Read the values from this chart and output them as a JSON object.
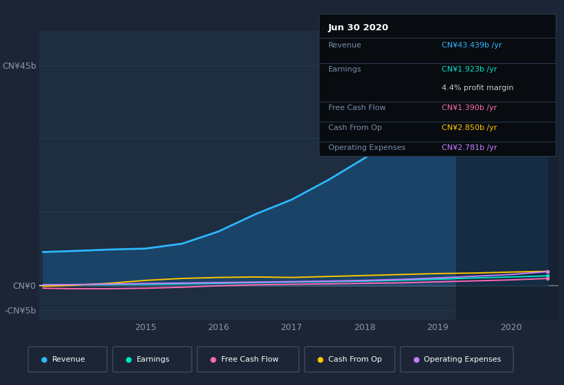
{
  "bg_color": "#1c2535",
  "plot_bg_color": "#1c2535",
  "chart_bg_color": "#1e2d40",
  "grid_color": "#2a3d52",
  "tooltip": {
    "title": "Jun 30 2020",
    "rows": [
      {
        "label": "Revenue",
        "value": "CN¥43.439b /yr",
        "value_color": "#2db8ff",
        "label_color": "#7a8fa8"
      },
      {
        "label": "Earnings",
        "value": "CN¥1.923b /yr",
        "value_color": "#00e5c8",
        "label_color": "#7a8fa8"
      },
      {
        "label": "",
        "value": "4.4% profit margin",
        "value_color": "#cccccc",
        "label_color": "#7a8fa8"
      },
      {
        "label": "Free Cash Flow",
        "value": "CN¥1.390b /yr",
        "value_color": "#ff69b4",
        "label_color": "#7a8fa8"
      },
      {
        "label": "Cash From Op",
        "value": "CN¥2.850b /yr",
        "value_color": "#ffc800",
        "label_color": "#7a8fa8"
      },
      {
        "label": "Operating Expenses",
        "value": "CN¥2.781b /yr",
        "value_color": "#c87eff",
        "label_color": "#7a8fa8"
      }
    ]
  },
  "x_years": [
    2013.6,
    2014.0,
    2014.5,
    2015.0,
    2015.5,
    2016.0,
    2016.5,
    2017.0,
    2017.5,
    2018.0,
    2018.5,
    2019.0,
    2019.5,
    2020.0,
    2020.5
  ],
  "revenue": [
    6.8,
    7.0,
    7.3,
    7.5,
    8.5,
    11.0,
    14.5,
    17.5,
    21.5,
    26.0,
    31.5,
    37.0,
    39.5,
    42.0,
    43.4
  ],
  "earnings": [
    0.05,
    0.1,
    0.15,
    0.2,
    0.3,
    0.4,
    0.55,
    0.65,
    0.75,
    0.85,
    1.05,
    1.25,
    1.5,
    1.7,
    1.923
  ],
  "free_cash_flow": [
    -0.6,
    -0.7,
    -0.7,
    -0.6,
    -0.4,
    -0.1,
    0.1,
    0.2,
    0.3,
    0.4,
    0.5,
    0.7,
    0.9,
    1.1,
    1.39
  ],
  "cash_from_op": [
    -0.2,
    0.0,
    0.4,
    1.0,
    1.4,
    1.6,
    1.7,
    1.6,
    1.8,
    2.0,
    2.2,
    2.4,
    2.5,
    2.7,
    2.85
  ],
  "op_expenses": [
    0.1,
    0.15,
    0.25,
    0.35,
    0.45,
    0.55,
    0.65,
    0.75,
    0.85,
    1.0,
    1.2,
    1.5,
    1.85,
    2.2,
    2.781
  ],
  "revenue_color": "#2db8ff",
  "earnings_color": "#00e5c8",
  "fcf_color": "#ff69b4",
  "cfop_color": "#ffc800",
  "opex_color": "#c87eff",
  "fill_color": "#1a4870",
  "fill_alpha": 0.85,
  "highlight_x_start": 2019.25,
  "highlight_color": "#111a26",
  "highlight_alpha": 0.55,
  "ylim": [
    -7,
    52
  ],
  "yticks": [
    -5,
    0,
    45
  ],
  "ytick_labels": [
    "-CN¥5b",
    "CN¥0",
    "CN¥45b"
  ],
  "xtick_years": [
    2015,
    2016,
    2017,
    2018,
    2019,
    2020
  ],
  "legend_entries": [
    {
      "label": "Revenue",
      "color": "#2db8ff"
    },
    {
      "label": "Earnings",
      "color": "#00e5c8"
    },
    {
      "label": "Free Cash Flow",
      "color": "#ff69b4"
    },
    {
      "label": "Cash From Op",
      "color": "#ffc800"
    },
    {
      "label": "Operating Expenses",
      "color": "#c87eff"
    }
  ]
}
